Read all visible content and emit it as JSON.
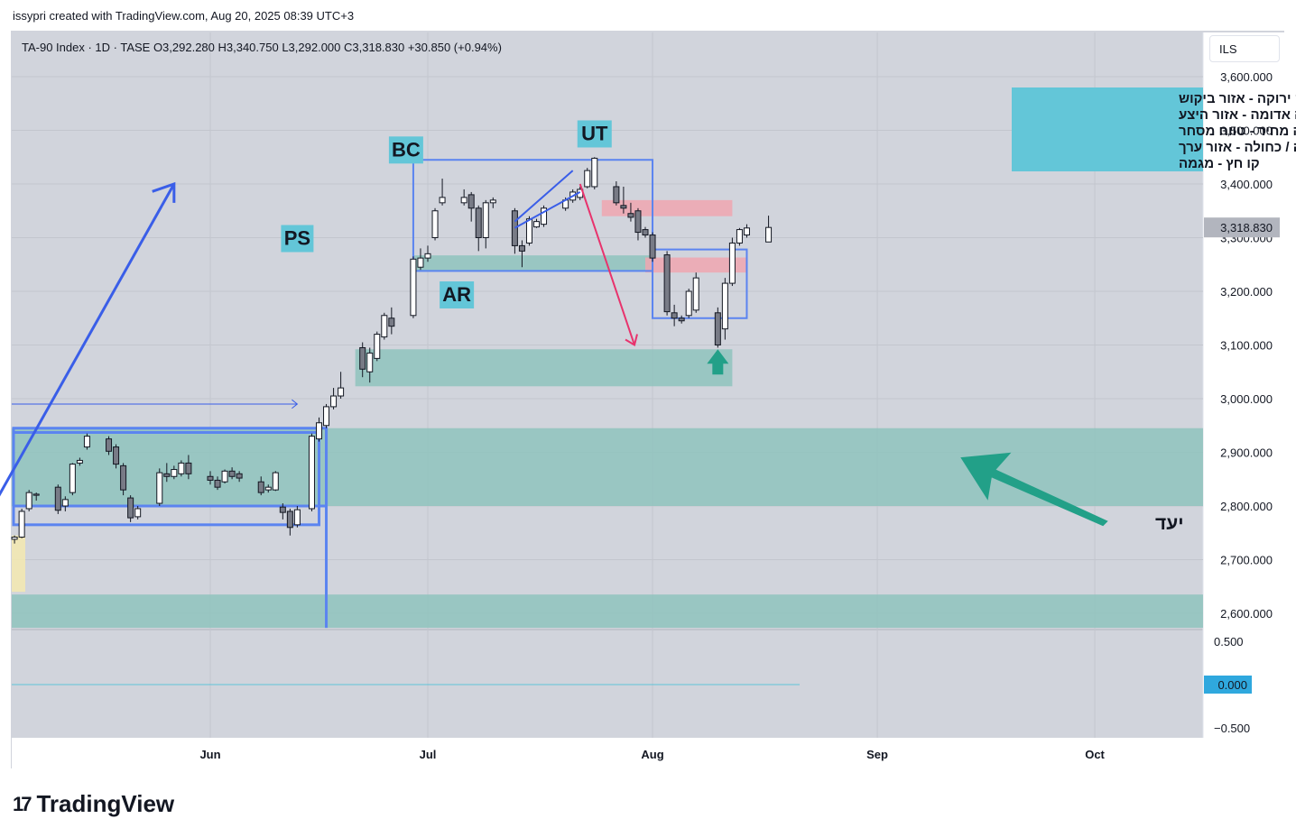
{
  "header": {
    "credit": "issypri created with TradingView.com, Aug 20, 2025 08:39 UTC+3",
    "currency": "ILS",
    "brand": "TradingView"
  },
  "chart_data": {
    "type": "candlestick",
    "symbol": "TA-90 Index",
    "interval": "1D",
    "exchange": "TASE",
    "legend_text": "TA-90 Index · 1D · TASE  O3,292.280  H3,340.750  L3,292.000  C3,318.830  +30.850 (+0.94%)",
    "last_price_label": "3,318.830",
    "ylim": [
      2570,
      3630
    ],
    "y_ticks": [
      "3,600.000",
      "3,500.000",
      "3,400.000",
      "3,300.000",
      "3,200.000",
      "3,100.000",
      "3,000.000",
      "2,900.000",
      "2,800.000",
      "2,700.000",
      "2,600.000"
    ],
    "y_tick_values": [
      3600,
      3500,
      3400,
      3300,
      3200,
      3100,
      3000,
      2900,
      2800,
      2700,
      2600
    ],
    "x_ticks": [
      "Jun",
      "Jul",
      "Aug",
      "Sep",
      "Oct"
    ],
    "x_tick_dates": [
      "2025-06-01",
      "2025-07-01",
      "2025-08-01",
      "2025-09-01",
      "2025-10-01"
    ],
    "x_start_date": "2025-05-05",
    "candles": [
      {
        "date": "2025-05-05",
        "o": 2738,
        "h": 2745,
        "l": 2730,
        "c": 2742
      },
      {
        "date": "2025-05-06",
        "o": 2742,
        "h": 2795,
        "l": 2740,
        "c": 2790
      },
      {
        "date": "2025-05-07",
        "o": 2795,
        "h": 2830,
        "l": 2790,
        "c": 2825
      },
      {
        "date": "2025-05-08",
        "o": 2820,
        "h": 2825,
        "l": 2810,
        "c": 2822
      },
      {
        "date": "2025-05-11",
        "o": 2835,
        "h": 2840,
        "l": 2785,
        "c": 2792
      },
      {
        "date": "2025-05-12",
        "o": 2800,
        "h": 2818,
        "l": 2790,
        "c": 2812
      },
      {
        "date": "2025-05-13",
        "o": 2825,
        "h": 2880,
        "l": 2820,
        "c": 2878
      },
      {
        "date": "2025-05-14",
        "o": 2880,
        "h": 2890,
        "l": 2875,
        "c": 2885
      },
      {
        "date": "2025-05-15",
        "o": 2910,
        "h": 2935,
        "l": 2905,
        "c": 2930
      },
      {
        "date": "2025-05-18",
        "o": 2925,
        "h": 2930,
        "l": 2895,
        "c": 2902
      },
      {
        "date": "2025-05-19",
        "o": 2910,
        "h": 2915,
        "l": 2870,
        "c": 2878
      },
      {
        "date": "2025-05-20",
        "o": 2875,
        "h": 2880,
        "l": 2820,
        "c": 2830
      },
      {
        "date": "2025-05-21",
        "o": 2815,
        "h": 2820,
        "l": 2770,
        "c": 2778
      },
      {
        "date": "2025-05-22",
        "o": 2780,
        "h": 2800,
        "l": 2775,
        "c": 2795
      },
      {
        "date": "2025-05-25",
        "o": 2805,
        "h": 2870,
        "l": 2800,
        "c": 2862
      },
      {
        "date": "2025-05-26",
        "o": 2860,
        "h": 2880,
        "l": 2845,
        "c": 2855
      },
      {
        "date": "2025-05-27",
        "o": 2855,
        "h": 2875,
        "l": 2850,
        "c": 2868
      },
      {
        "date": "2025-05-28",
        "o": 2860,
        "h": 2885,
        "l": 2855,
        "c": 2880
      },
      {
        "date": "2025-05-29",
        "o": 2880,
        "h": 2895,
        "l": 2850,
        "c": 2860
      },
      {
        "date": "2025-06-01",
        "o": 2855,
        "h": 2865,
        "l": 2840,
        "c": 2848
      },
      {
        "date": "2025-06-02",
        "o": 2848,
        "h": 2855,
        "l": 2830,
        "c": 2835
      },
      {
        "date": "2025-06-03",
        "o": 2845,
        "h": 2868,
        "l": 2842,
        "c": 2865
      },
      {
        "date": "2025-06-04",
        "o": 2865,
        "h": 2872,
        "l": 2850,
        "c": 2855
      },
      {
        "date": "2025-06-05",
        "o": 2860,
        "h": 2865,
        "l": 2845,
        "c": 2852
      },
      {
        "date": "2025-06-08",
        "o": 2845,
        "h": 2855,
        "l": 2820,
        "c": 2825
      },
      {
        "date": "2025-06-09",
        "o": 2830,
        "h": 2840,
        "l": 2825,
        "c": 2835
      },
      {
        "date": "2025-06-10",
        "o": 2830,
        "h": 2865,
        "l": 2828,
        "c": 2862
      },
      {
        "date": "2025-06-11",
        "o": 2798,
        "h": 2805,
        "l": 2775,
        "c": 2788
      },
      {
        "date": "2025-06-12",
        "o": 2790,
        "h": 2795,
        "l": 2745,
        "c": 2760
      },
      {
        "date": "2025-06-13",
        "o": 2765,
        "h": 2800,
        "l": 2760,
        "c": 2793
      },
      {
        "date": "2025-06-15",
        "o": 2795,
        "h": 2935,
        "l": 2790,
        "c": 2930
      },
      {
        "date": "2025-06-16",
        "o": 2925,
        "h": 2965,
        "l": 2920,
        "c": 2955
      },
      {
        "date": "2025-06-17",
        "o": 2950,
        "h": 2990,
        "l": 2945,
        "c": 2985
      },
      {
        "date": "2025-06-18",
        "o": 2985,
        "h": 3020,
        "l": 2980,
        "c": 3005
      },
      {
        "date": "2025-06-19",
        "o": 3005,
        "h": 3050,
        "l": 3000,
        "c": 3020
      },
      {
        "date": "2025-06-22",
        "o": 3095,
        "h": 3105,
        "l": 3040,
        "c": 3055
      },
      {
        "date": "2025-06-23",
        "o": 3050,
        "h": 3095,
        "l": 3030,
        "c": 3085
      },
      {
        "date": "2025-06-24",
        "o": 3075,
        "h": 3125,
        "l": 3070,
        "c": 3120
      },
      {
        "date": "2025-06-25",
        "o": 3115,
        "h": 3160,
        "l": 3110,
        "c": 3155
      },
      {
        "date": "2025-06-26",
        "o": 3150,
        "h": 3170,
        "l": 3120,
        "c": 3135
      },
      {
        "date": "2025-06-29",
        "o": 3155,
        "h": 3265,
        "l": 3150,
        "c": 3260
      },
      {
        "date": "2025-06-30",
        "o": 3245,
        "h": 3280,
        "l": 3240,
        "c": 3262
      },
      {
        "date": "2025-07-01",
        "o": 3262,
        "h": 3285,
        "l": 3255,
        "c": 3270
      },
      {
        "date": "2025-07-02",
        "o": 3300,
        "h": 3355,
        "l": 3295,
        "c": 3350
      },
      {
        "date": "2025-07-03",
        "o": 3365,
        "h": 3410,
        "l": 3360,
        "c": 3375
      },
      {
        "date": "2025-07-06",
        "o": 3365,
        "h": 3390,
        "l": 3360,
        "c": 3375
      },
      {
        "date": "2025-07-07",
        "o": 3380,
        "h": 3385,
        "l": 3330,
        "c": 3355
      },
      {
        "date": "2025-07-08",
        "o": 3355,
        "h": 3360,
        "l": 3275,
        "c": 3300
      },
      {
        "date": "2025-07-09",
        "o": 3300,
        "h": 3370,
        "l": 3280,
        "c": 3365
      },
      {
        "date": "2025-07-10",
        "o": 3365,
        "h": 3375,
        "l": 3355,
        "c": 3370
      },
      {
        "date": "2025-07-13",
        "o": 3350,
        "h": 3355,
        "l": 3270,
        "c": 3285
      },
      {
        "date": "2025-07-14",
        "o": 3285,
        "h": 3295,
        "l": 3245,
        "c": 3275
      },
      {
        "date": "2025-07-15",
        "o": 3290,
        "h": 3340,
        "l": 3285,
        "c": 3335
      },
      {
        "date": "2025-07-16",
        "o": 3320,
        "h": 3335,
        "l": 3318,
        "c": 3330
      },
      {
        "date": "2025-07-17",
        "o": 3325,
        "h": 3360,
        "l": 3320,
        "c": 3355
      },
      {
        "date": "2025-07-20",
        "o": 3355,
        "h": 3375,
        "l": 3350,
        "c": 3370
      },
      {
        "date": "2025-07-21",
        "o": 3370,
        "h": 3390,
        "l": 3365,
        "c": 3385
      },
      {
        "date": "2025-07-22",
        "o": 3375,
        "h": 3395,
        "l": 3370,
        "c": 3390
      },
      {
        "date": "2025-07-23",
        "o": 3395,
        "h": 3430,
        "l": 3392,
        "c": 3425
      },
      {
        "date": "2025-07-24",
        "o": 3395,
        "h": 3450,
        "l": 3390,
        "c": 3448
      },
      {
        "date": "2025-07-27",
        "o": 3395,
        "h": 3405,
        "l": 3360,
        "c": 3365
      },
      {
        "date": "2025-07-28",
        "o": 3360,
        "h": 3395,
        "l": 3345,
        "c": 3355
      },
      {
        "date": "2025-07-29",
        "o": 3345,
        "h": 3365,
        "l": 3330,
        "c": 3338
      },
      {
        "date": "2025-07-30",
        "o": 3350,
        "h": 3355,
        "l": 3295,
        "c": 3310
      },
      {
        "date": "2025-07-31",
        "o": 3315,
        "h": 3320,
        "l": 3300,
        "c": 3305
      },
      {
        "date": "2025-08-01",
        "o": 3305,
        "h": 3310,
        "l": 3255,
        "c": 3262
      },
      {
        "date": "2025-08-03",
        "o": 3268,
        "h": 3275,
        "l": 3155,
        "c": 3162
      },
      {
        "date": "2025-08-04",
        "o": 3160,
        "h": 3175,
        "l": 3135,
        "c": 3150
      },
      {
        "date": "2025-08-05",
        "o": 3150,
        "h": 3155,
        "l": 3140,
        "c": 3145
      },
      {
        "date": "2025-08-06",
        "o": 3155,
        "h": 3205,
        "l": 3150,
        "c": 3200
      },
      {
        "date": "2025-08-07",
        "o": 3165,
        "h": 3235,
        "l": 3160,
        "c": 3225
      },
      {
        "date": "2025-08-10",
        "o": 3160,
        "h": 3170,
        "l": 3095,
        "c": 3100
      },
      {
        "date": "2025-08-11",
        "o": 3130,
        "h": 3225,
        "l": 3110,
        "c": 3215
      },
      {
        "date": "2025-08-12",
        "o": 3215,
        "h": 3300,
        "l": 3210,
        "c": 3290
      },
      {
        "date": "2025-08-13",
        "o": 3290,
        "h": 3318,
        "l": 3285,
        "c": 3315
      },
      {
        "date": "2025-08-14",
        "o": 3305,
        "h": 3325,
        "l": 3300,
        "c": 3318
      },
      {
        "date": "2025-08-17",
        "o": 3292,
        "h": 3341,
        "l": 3292,
        "c": 3319
      }
    ],
    "indicator_pane": {
      "ylim": [
        -0.6,
        0.6
      ],
      "ticks": [
        "0.500",
        "−0.500"
      ],
      "tick_values": [
        0.5,
        -0.5
      ],
      "value_label": "0.000",
      "value": 0
    },
    "annotations": {
      "wyckoff_labels": [
        "PS",
        "BC",
        "AR",
        "UT"
      ],
      "legend_lines": [
        "רצועה ירוקה - אזור ביקוש",
        "רצועה אדומה - אזור היצע",
        "מלבן - מבנה מחיר - טווח מסחר",
        "רצועה סגולה / כחולה - אזור ערך",
        "קו חץ - מגמה"
      ],
      "target_label": "יעד"
    },
    "colors": {
      "background": "#d1d4dc",
      "up_body": "#ffffff",
      "down_body": "#787b86",
      "candle_border": "#131722",
      "demand_zone": "#8fc3bd",
      "supply_zone": "#f0a6b0",
      "box": "#5b84f0",
      "trend_arrow": "#3a5ee8",
      "down_arrow": "#e8336d",
      "target_arrow": "#22a088",
      "label_bg": "#63c6d8",
      "pane_line": "#5fc3d9"
    }
  }
}
